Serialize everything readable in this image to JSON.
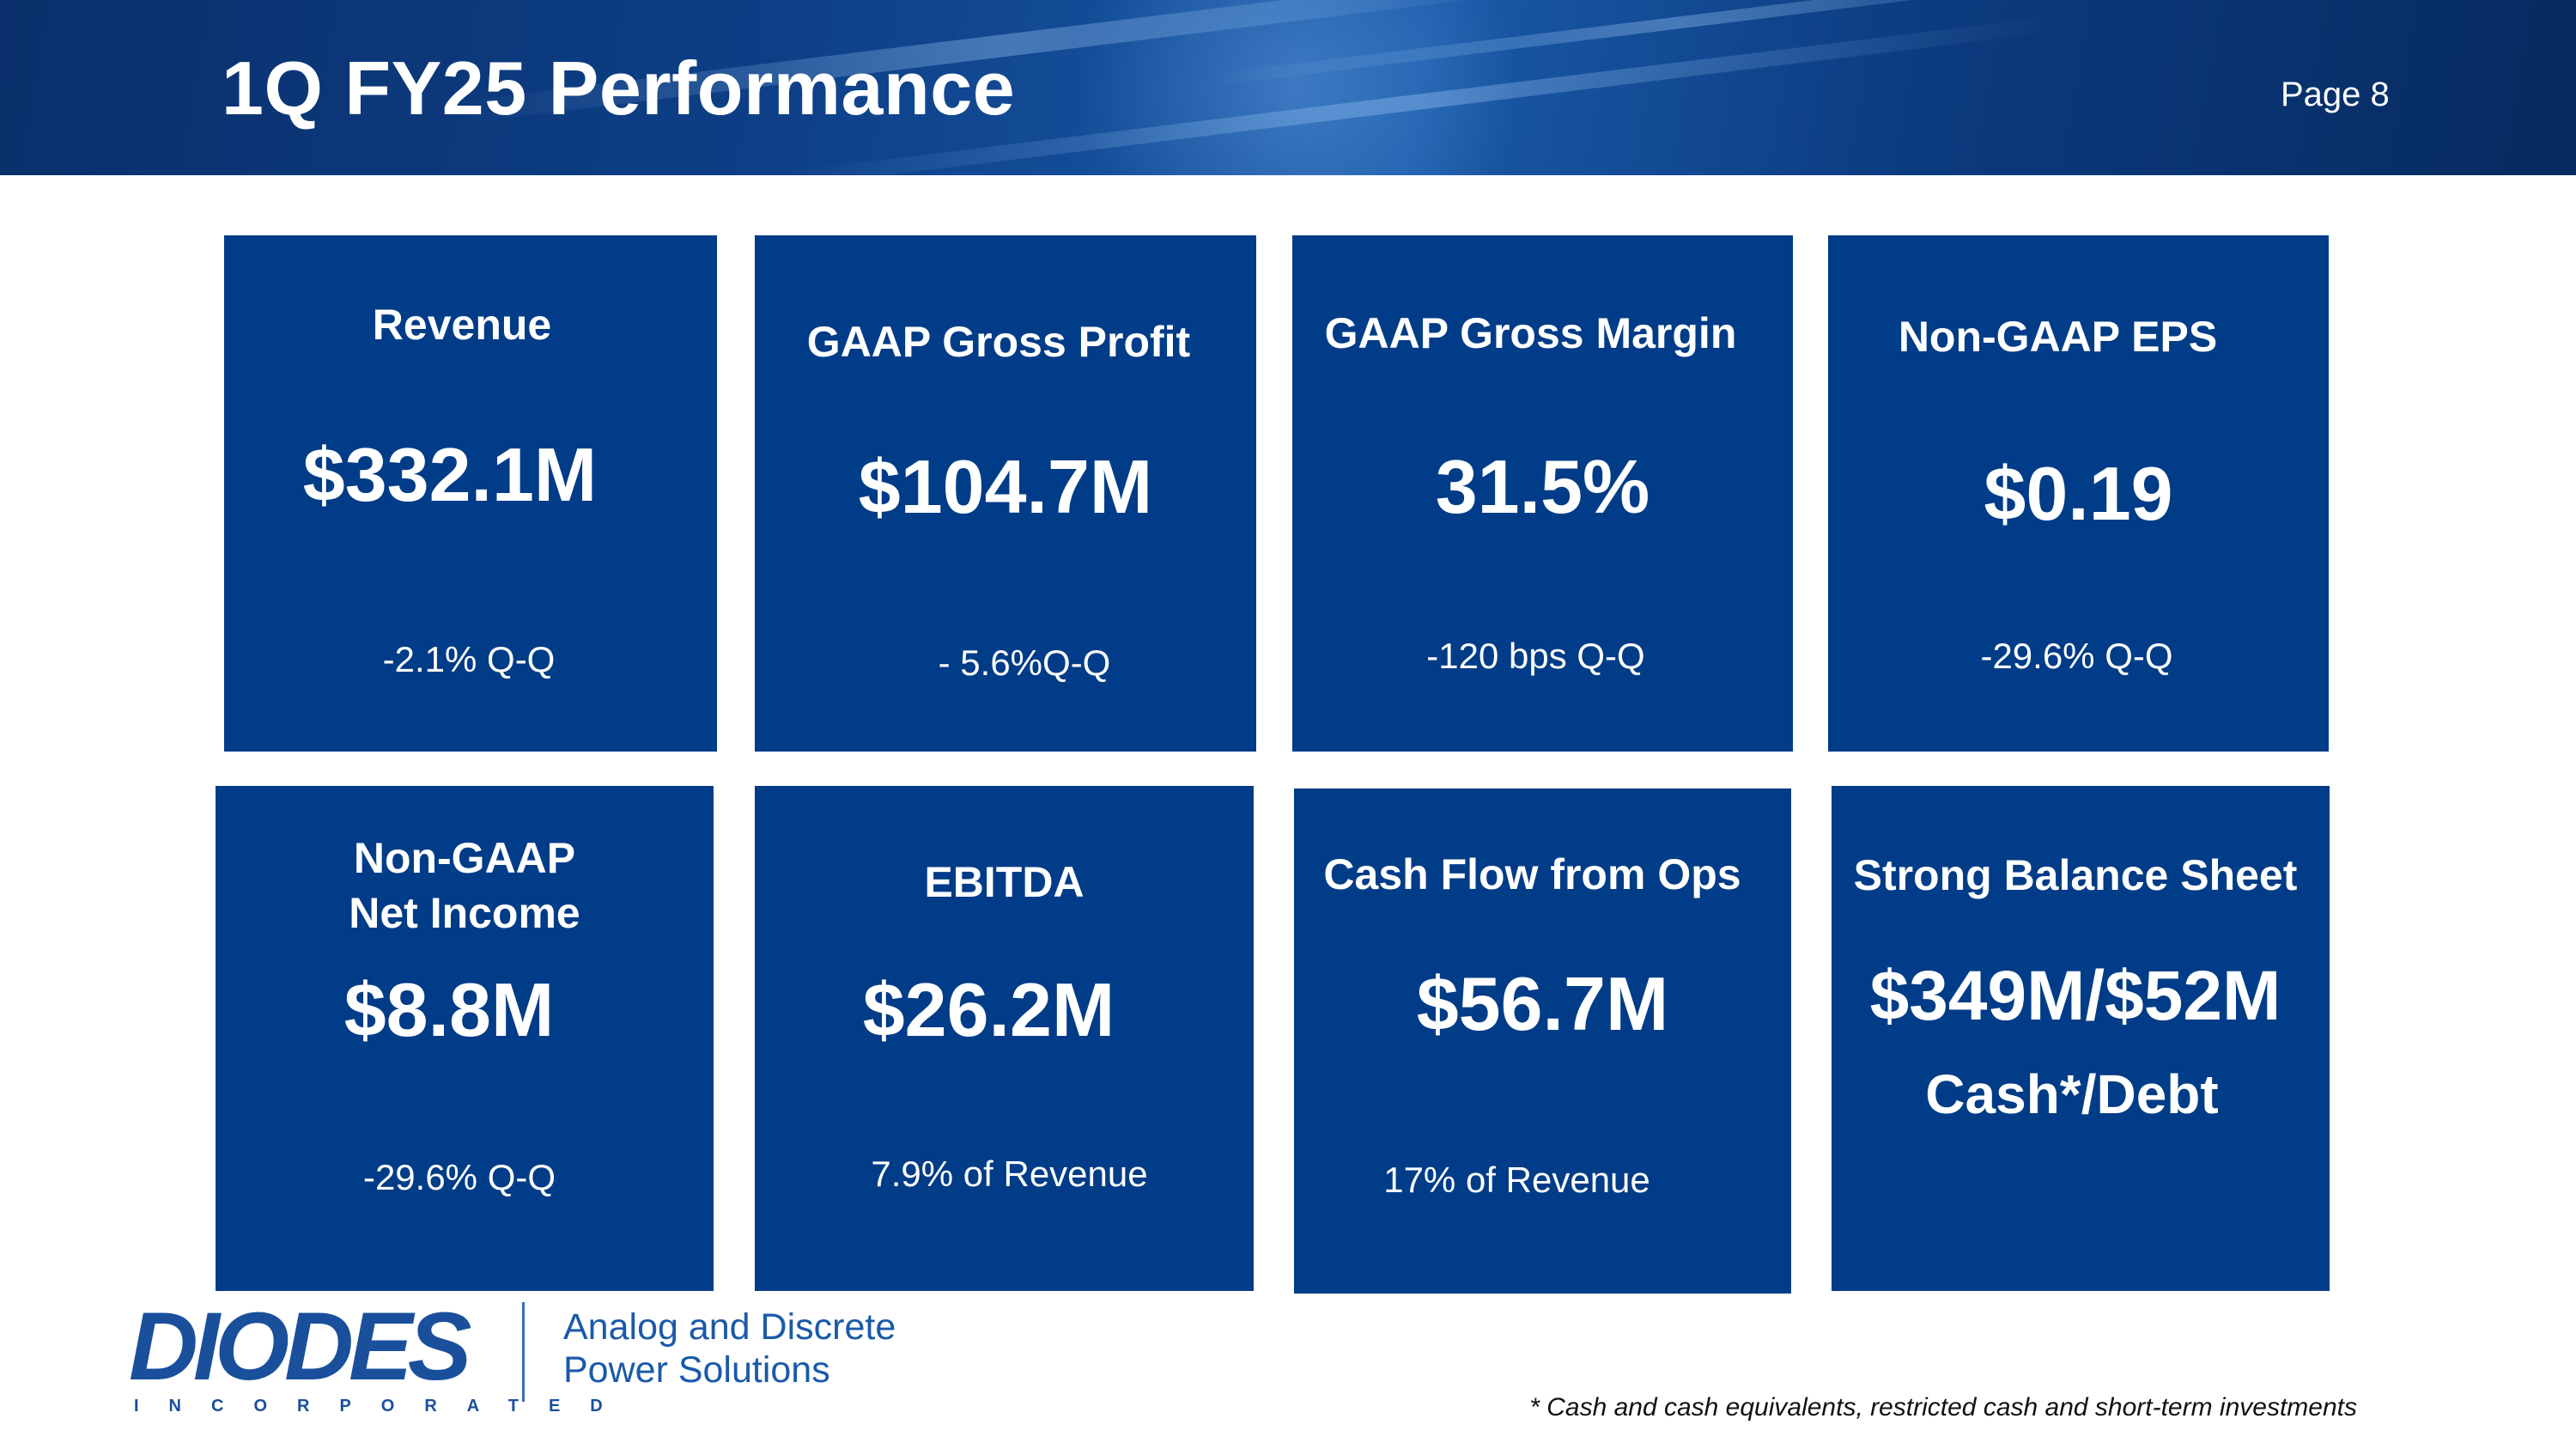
{
  "header": {
    "title": "1Q FY25 Performance",
    "page": "Page 8"
  },
  "metrics": {
    "revenue": {
      "label": "Revenue",
      "value": "$332.1M",
      "change": "-2.1%  Q-Q"
    },
    "gross_profit": {
      "label": "GAAP Gross Profit",
      "value": "$104.7M",
      "change": "- 5.6%Q-Q"
    },
    "gross_margin": {
      "label": "GAAP Gross Margin",
      "value": "31.5%",
      "change": "-120 bps Q-Q"
    },
    "eps": {
      "label": "Non-GAAP EPS",
      "value": "$0.19",
      "change": "-29.6% Q-Q"
    },
    "net_income": {
      "label_line1": "Non-GAAP",
      "label_line2": "Net Income",
      "value": "$8.8M",
      "change": "-29.6% Q-Q"
    },
    "ebitda": {
      "label": "EBITDA",
      "value": "$26.2M",
      "change": "7.9% of Revenue"
    },
    "cash_flow": {
      "label": "Cash Flow from Ops",
      "value": "$56.7M",
      "change": "17% of Revenue"
    },
    "balance_sheet": {
      "label": "Strong Balance Sheet",
      "value": "$349M/$52M",
      "value_line2": "Cash*/Debt"
    }
  },
  "footer": {
    "logo_word": "DIODES",
    "logo_sub": "INCORPORATED",
    "tagline_line1": "Analog and Discrete",
    "tagline_line2": "Power Solutions",
    "footnote": "* Cash and cash equivalents, restricted cash and short-term investments"
  },
  "colors": {
    "tile": "#003c87",
    "brand": "#1a4f9c"
  }
}
